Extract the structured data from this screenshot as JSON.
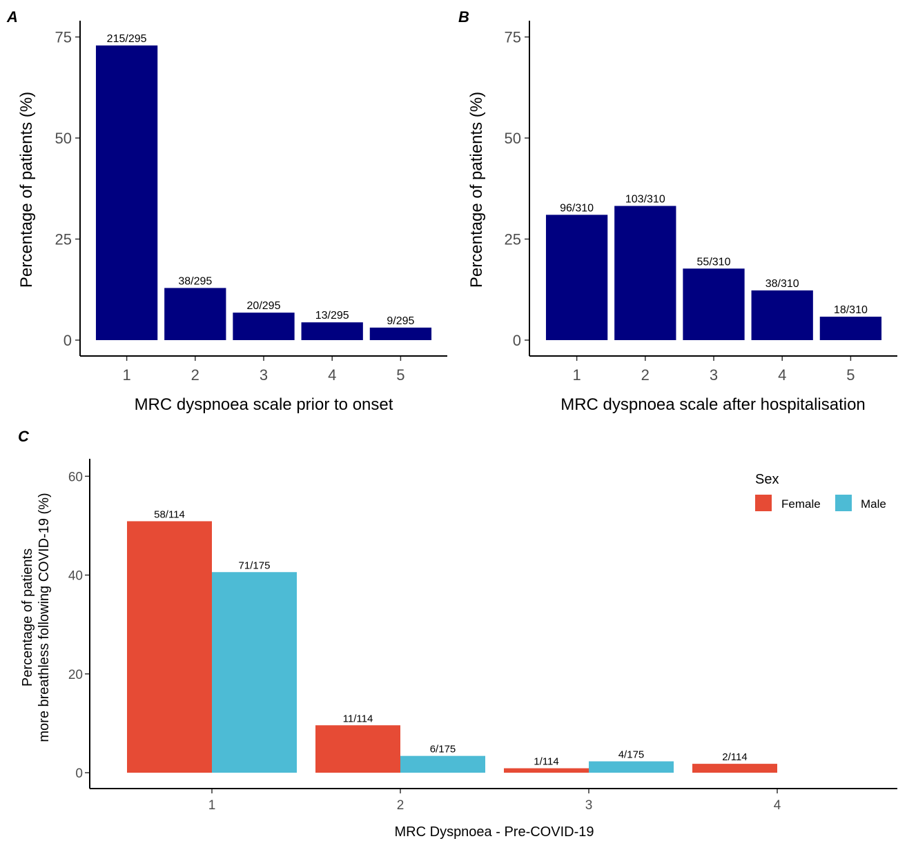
{
  "chart_data": [
    {
      "panel": "A",
      "type": "bar",
      "categories": [
        "1",
        "2",
        "3",
        "4",
        "5"
      ],
      "values": [
        72.9,
        12.9,
        6.8,
        4.4,
        3.1
      ],
      "labels": [
        "215/295",
        "38/295",
        "20/295",
        "13/295",
        "9/295"
      ],
      "xlabel": "MRC dyspnoea scale prior to onset",
      "ylabel": "Percentage of patients (%)",
      "ylim": [
        0,
        78
      ],
      "yticks": [
        0,
        25,
        50,
        75
      ],
      "color": "#000080",
      "grid": false
    },
    {
      "panel": "B",
      "type": "bar",
      "categories": [
        "1",
        "2",
        "3",
        "4",
        "5"
      ],
      "values": [
        31.0,
        33.2,
        17.7,
        12.3,
        5.8
      ],
      "labels": [
        "96/310",
        "103/310",
        "55/310",
        "38/310",
        "18/310"
      ],
      "xlabel": "MRC dyspnoea scale after hospitalisation",
      "ylabel": "Percentage of patients (%)",
      "ylim": [
        0,
        78
      ],
      "yticks": [
        0,
        25,
        50,
        75
      ],
      "color": "#000080",
      "grid": false
    },
    {
      "panel": "C",
      "type": "bar",
      "categories": [
        "1",
        "2",
        "3",
        "4"
      ],
      "series": [
        {
          "name": "Female",
          "color": "#E64B35",
          "values": [
            50.9,
            9.6,
            0.9,
            1.8
          ],
          "labels": [
            "58/114",
            "11/114",
            "1/114",
            "2/114"
          ]
        },
        {
          "name": "Male",
          "color": "#4DBBD5",
          "values": [
            40.6,
            3.4,
            2.3,
            null
          ],
          "labels": [
            "71/175",
            "6/175",
            "4/175",
            ""
          ]
        }
      ],
      "xlabel": "MRC Dyspnoea - Pre-COVID-19",
      "ylabel": [
        "Percentage of patients",
        "more breathless following COVID-19 (%)"
      ],
      "ylim": [
        0,
        62
      ],
      "yticks": [
        0,
        20,
        40,
        60
      ],
      "legend_title": "Sex",
      "legend_position": "top-right",
      "grid": false
    }
  ]
}
